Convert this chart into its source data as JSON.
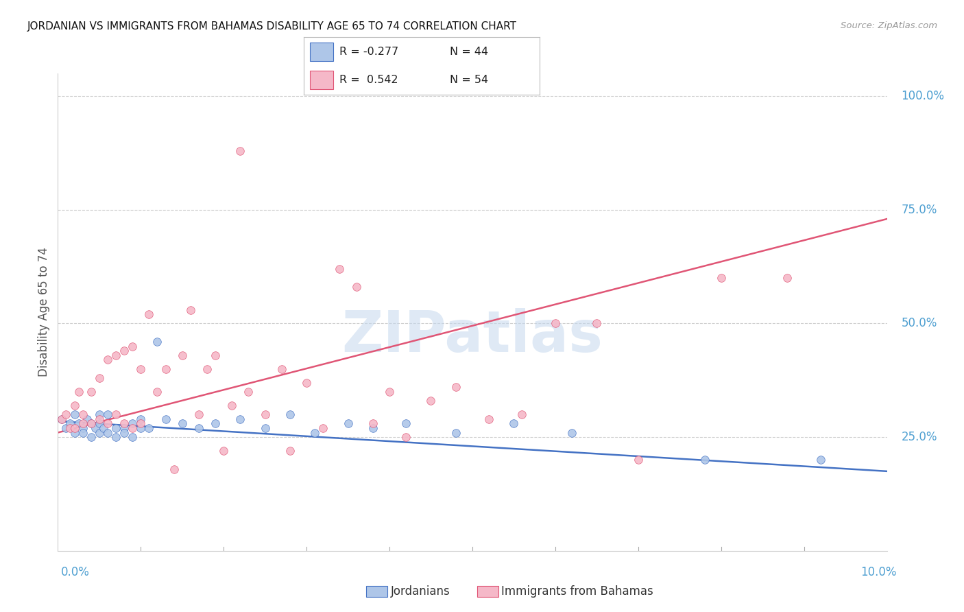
{
  "title": "JORDANIAN VS IMMIGRANTS FROM BAHAMAS DISABILITY AGE 65 TO 74 CORRELATION CHART",
  "source": "Source: ZipAtlas.com",
  "ylabel": "Disability Age 65 to 74",
  "series1_label": "Jordanians",
  "series2_label": "Immigrants from Bahamas",
  "series1_color": "#aec6e8",
  "series2_color": "#f5b8c8",
  "series1_line_color": "#4472c4",
  "series2_line_color": "#e05575",
  "watermark": "ZIPatlas",
  "background_color": "#ffffff",
  "grid_color": "#d0d0d0",
  "axis_label_color": "#4e9fd1",
  "title_color": "#111111",
  "xlim": [
    0.0,
    0.1
  ],
  "ylim": [
    0.0,
    1.05
  ],
  "yticks": [
    0.25,
    0.5,
    0.75,
    1.0
  ],
  "ytick_labels": [
    "25.0%",
    "50.0%",
    "75.0%",
    "100.0%"
  ],
  "legend_r1": "R = -0.277",
  "legend_n1": "N = 44",
  "legend_r2": "R =  0.542",
  "legend_n2": "N = 54",
  "series1_x": [
    0.0005,
    0.001,
    0.0015,
    0.002,
    0.002,
    0.0025,
    0.003,
    0.003,
    0.0035,
    0.004,
    0.004,
    0.0045,
    0.005,
    0.005,
    0.005,
    0.0055,
    0.006,
    0.006,
    0.007,
    0.007,
    0.008,
    0.008,
    0.009,
    0.009,
    0.01,
    0.01,
    0.011,
    0.012,
    0.013,
    0.015,
    0.017,
    0.019,
    0.022,
    0.025,
    0.028,
    0.031,
    0.035,
    0.038,
    0.042,
    0.048,
    0.055,
    0.062,
    0.078,
    0.092
  ],
  "series1_y": [
    0.29,
    0.27,
    0.28,
    0.3,
    0.26,
    0.28,
    0.27,
    0.26,
    0.29,
    0.28,
    0.25,
    0.27,
    0.3,
    0.26,
    0.28,
    0.27,
    0.3,
    0.26,
    0.27,
    0.25,
    0.27,
    0.26,
    0.28,
    0.25,
    0.29,
    0.27,
    0.27,
    0.46,
    0.29,
    0.28,
    0.27,
    0.28,
    0.29,
    0.27,
    0.3,
    0.26,
    0.28,
    0.27,
    0.28,
    0.26,
    0.28,
    0.26,
    0.2,
    0.2
  ],
  "series2_x": [
    0.0005,
    0.001,
    0.0015,
    0.002,
    0.002,
    0.0025,
    0.003,
    0.003,
    0.004,
    0.004,
    0.005,
    0.005,
    0.006,
    0.006,
    0.007,
    0.007,
    0.008,
    0.008,
    0.009,
    0.009,
    0.01,
    0.01,
    0.011,
    0.012,
    0.013,
    0.014,
    0.015,
    0.016,
    0.017,
    0.018,
    0.019,
    0.02,
    0.021,
    0.022,
    0.023,
    0.025,
    0.027,
    0.028,
    0.03,
    0.032,
    0.034,
    0.036,
    0.038,
    0.04,
    0.042,
    0.045,
    0.048,
    0.052,
    0.056,
    0.06,
    0.065,
    0.07,
    0.08,
    0.088
  ],
  "series2_y": [
    0.29,
    0.3,
    0.27,
    0.32,
    0.27,
    0.35,
    0.3,
    0.28,
    0.35,
    0.28,
    0.38,
    0.29,
    0.42,
    0.28,
    0.43,
    0.3,
    0.44,
    0.28,
    0.45,
    0.27,
    0.4,
    0.28,
    0.52,
    0.35,
    0.4,
    0.18,
    0.43,
    0.53,
    0.3,
    0.4,
    0.43,
    0.22,
    0.32,
    0.88,
    0.35,
    0.3,
    0.4,
    0.22,
    0.37,
    0.27,
    0.62,
    0.58,
    0.28,
    0.35,
    0.25,
    0.33,
    0.36,
    0.29,
    0.3,
    0.5,
    0.5,
    0.2,
    0.6,
    0.6
  ],
  "series1_trend_x": [
    0.0,
    0.1
  ],
  "series1_trend_y": [
    0.285,
    0.175
  ],
  "series2_trend_x": [
    0.0,
    0.1
  ],
  "series2_trend_y": [
    0.26,
    0.73
  ]
}
